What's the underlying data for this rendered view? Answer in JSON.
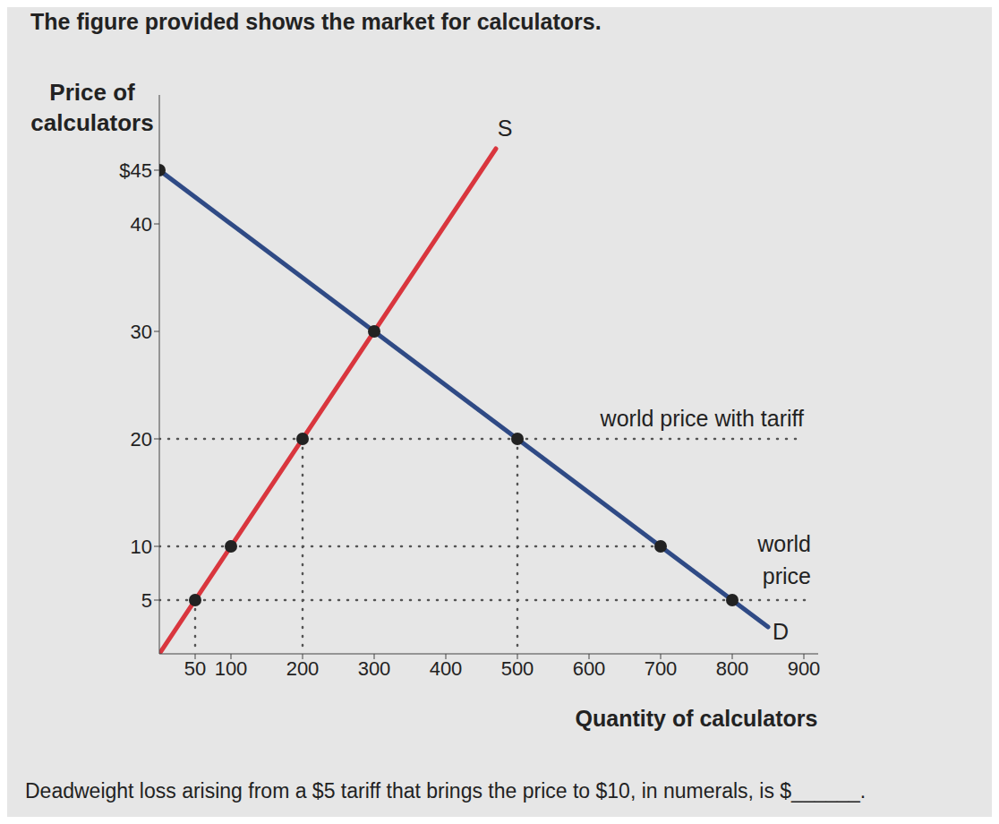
{
  "chart_data": {
    "type": "line",
    "title": "The figure provided shows the market for calculators.",
    "y_label": "Price of calculators",
    "x_label": "Quantity of calculators",
    "question": "Deadweight loss arising from a $5 tariff that brings the price to $10, in numerals, is $______.",
    "xlim": [
      0,
      920
    ],
    "xticks": [
      50,
      100,
      200,
      300,
      400,
      500,
      600,
      700,
      800,
      900
    ],
    "ylim": [
      0,
      52
    ],
    "yticks": [
      5,
      10,
      20,
      30,
      40,
      {
        "value": 45,
        "label": "$45"
      }
    ],
    "grid": false,
    "series": [
      {
        "name": "S",
        "type": "line",
        "color": "#d9363e",
        "x": [
          0,
          470
        ],
        "values": [
          0,
          47
        ]
      },
      {
        "name": "D",
        "type": "line",
        "color": "#2f4a85",
        "x": [
          0,
          850
        ],
        "values": [
          45,
          2.5
        ]
      },
      {
        "name": "world price with tariff",
        "type": "line",
        "line_style": "dotted",
        "color": "#555555",
        "x": [
          0,
          900
        ],
        "values": [
          20,
          20
        ]
      },
      {
        "name": "world price",
        "type": "line",
        "line_style": "dotted",
        "color": "#555555",
        "x": [
          0,
          910
        ],
        "values": [
          5,
          5
        ]
      },
      {
        "type": "line",
        "line_style": "dotted",
        "color": "#555555",
        "x": [
          0,
          700
        ],
        "values": [
          10,
          10
        ]
      },
      {
        "type": "line",
        "line_style": "dotted",
        "color": "#555555",
        "x": [
          200,
          200
        ],
        "values": [
          20,
          0
        ]
      },
      {
        "type": "line",
        "line_style": "dotted",
        "color": "#555555",
        "x": [
          500,
          500
        ],
        "values": [
          20,
          0
        ]
      },
      {
        "type": "line",
        "line_style": "dotted",
        "color": "#555555",
        "x": [
          50,
          50
        ],
        "values": [
          5,
          0
        ]
      },
      {
        "type": "scatter",
        "marker": "circle",
        "color": "#222222",
        "x": [
          0,
          300,
          200,
          500,
          100,
          700,
          50,
          800
        ],
        "values": [
          45,
          30,
          20,
          20,
          10,
          10,
          5,
          5
        ]
      }
    ]
  }
}
